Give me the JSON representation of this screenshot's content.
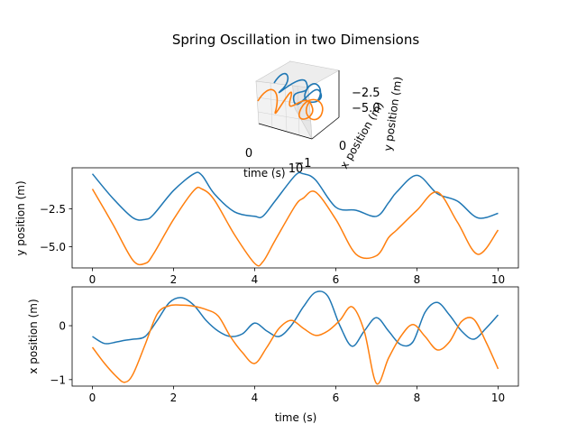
{
  "chart_data": {
    "title": "Spring Oscillation in two Dimensions",
    "subplots": [
      {
        "type": "line3d",
        "xlabel": "time (s)",
        "ylabel": "x position (m)",
        "zlabel": "y position (m)",
        "xticks": [
          "0",
          "10"
        ],
        "yticks": [
          "0",
          "−1"
        ],
        "zticks": [
          "−2.5",
          "−5.0"
        ]
      },
      {
        "type": "line",
        "xlabel": "",
        "ylabel": "y position (m)",
        "xlim": [
          0,
          10
        ],
        "ylim": [
          -6.4,
          0.2
        ],
        "xticks": [
          "0",
          "2",
          "4",
          "6",
          "8",
          "10"
        ],
        "yticks": [
          "−2.5",
          "−5.0"
        ],
        "x": [
          0.0,
          0.5,
          1.0,
          1.3,
          1.5,
          2.0,
          2.5,
          2.7,
          3.0,
          3.5,
          4.0,
          4.2,
          4.5,
          5.0,
          5.2,
          5.5,
          6.0,
          6.5,
          7.0,
          7.3,
          7.5,
          8.0,
          8.5,
          9.0,
          9.5,
          10.0
        ],
        "series": [
          {
            "color": "#1f77b4",
            "values": [
              -0.2,
              -1.8,
              -3.1,
              -3.2,
              -2.9,
              -1.3,
              -0.2,
              -0.3,
              -1.5,
              -2.7,
              -3.0,
              -3.0,
              -2.0,
              -0.3,
              -0.2,
              -0.6,
              -2.4,
              -2.6,
              -3.0,
              -2.1,
              -1.4,
              -0.3,
              -1.5,
              -2.0,
              -3.1,
              -2.8
            ]
          },
          {
            "color": "#ff7f0e",
            "values": [
              -1.2,
              -3.5,
              -5.9,
              -6.1,
              -5.5,
              -3.2,
              -1.3,
              -1.2,
              -1.9,
              -4.2,
              -6.1,
              -6.0,
              -4.6,
              -2.3,
              -1.8,
              -1.4,
              -3.2,
              -5.5,
              -5.6,
              -4.4,
              -3.9,
              -2.6,
              -1.4,
              -3.4,
              -5.5,
              -3.9
            ]
          }
        ]
      },
      {
        "type": "line",
        "xlabel": "time (s)",
        "ylabel": "x position (m)",
        "xlim": [
          0,
          10
        ],
        "ylim": [
          -1.12,
          0.72
        ],
        "xticks": [
          "0",
          "2",
          "4",
          "6",
          "8",
          "10"
        ],
        "yticks": [
          "0",
          "−1"
        ],
        "x": [
          0.0,
          0.3,
          0.6,
          0.8,
          1.0,
          1.3,
          1.6,
          1.9,
          2.2,
          2.5,
          2.8,
          3.1,
          3.4,
          3.7,
          4.0,
          4.3,
          4.6,
          4.9,
          5.2,
          5.5,
          5.8,
          6.1,
          6.4,
          6.7,
          7.0,
          7.3,
          7.6,
          7.9,
          8.2,
          8.5,
          8.8,
          9.1,
          9.4,
          9.7,
          10.0
        ],
        "series": [
          {
            "color": "#1f77b4",
            "values": [
              -0.2,
              -0.33,
              -0.3,
              -0.27,
              -0.25,
              -0.2,
              0.1,
              0.43,
              0.52,
              0.38,
              0.1,
              -0.1,
              -0.2,
              -0.15,
              0.05,
              -0.1,
              -0.2,
              0.0,
              0.35,
              0.62,
              0.55,
              0.0,
              -0.38,
              -0.1,
              0.15,
              -0.1,
              -0.35,
              -0.3,
              0.25,
              0.43,
              0.2,
              -0.1,
              -0.25,
              -0.05,
              0.2
            ]
          },
          {
            "color": "#ff7f0e",
            "values": [
              -0.4,
              -0.7,
              -0.95,
              -1.05,
              -0.9,
              -0.35,
              0.22,
              0.37,
              0.38,
              0.36,
              0.3,
              0.18,
              -0.2,
              -0.5,
              -0.7,
              -0.4,
              -0.05,
              0.1,
              -0.05,
              -0.18,
              -0.1,
              0.1,
              0.35,
              -0.1,
              -1.07,
              -0.6,
              -0.2,
              0.02,
              -0.2,
              -0.45,
              -0.3,
              0.08,
              0.12,
              -0.3,
              -0.8
            ]
          }
        ]
      }
    ]
  }
}
